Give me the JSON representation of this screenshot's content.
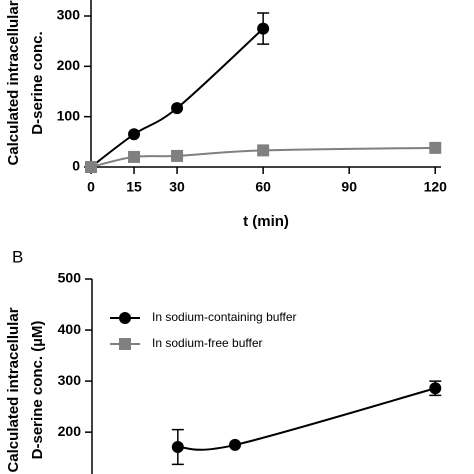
{
  "chart_data": [
    {
      "type": "scatter",
      "ylabel_lines": [
        "Calculated intracellular",
        "D-serine conc."
      ],
      "xlabel": "t (min)",
      "xlim": [
        0,
        122
      ],
      "xticks": [
        0,
        15,
        30,
        60,
        90,
        120
      ],
      "ylim": [
        0,
        300
      ],
      "yticks": [
        0,
        100,
        200,
        300
      ],
      "series": [
        {
          "marker": "circle",
          "color": "#000000",
          "x": [
            0,
            15,
            30,
            60
          ],
          "values": [
            0,
            65,
            117,
            275
          ],
          "errors": [
            null,
            null,
            null,
            31
          ]
        },
        {
          "marker": "square",
          "color": "#808080",
          "x": [
            0,
            15,
            30,
            60,
            120
          ],
          "values": [
            0,
            20,
            22,
            33,
            38
          ],
          "errors": [
            null,
            null,
            null,
            null,
            null
          ]
        }
      ]
    },
    {
      "type": "scatter",
      "panel_label": "B",
      "ylabel_lines": [
        "Calculated intracellular",
        "D-serine conc. (µM)"
      ],
      "xlim": [
        0,
        122
      ],
      "ylim": [
        120,
        500
      ],
      "yticks": [
        200,
        300,
        400,
        500
      ],
      "series": [
        {
          "name": "In sodium-containing buffer",
          "marker": "circle",
          "color": "#000000",
          "x": [
            30,
            50,
            120
          ],
          "values": [
            171,
            175,
            286
          ],
          "errors": [
            34,
            null,
            14
          ]
        },
        {
          "name": "In sodium-free buffer",
          "marker": "square",
          "color": "#808080",
          "x": [],
          "values": [],
          "errors": []
        }
      ]
    }
  ]
}
